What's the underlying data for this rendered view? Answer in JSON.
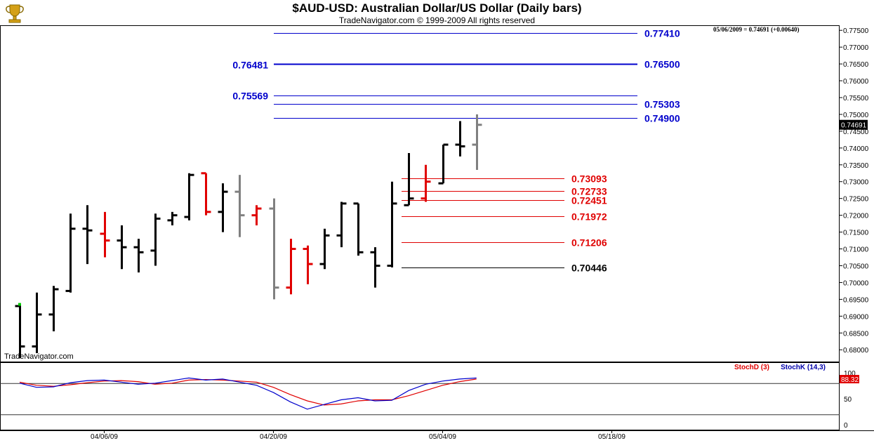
{
  "header": {
    "title": "$AUD-USD:  Australian Dollar/US Dollar  (Daily bars)",
    "copyright": "TradeNavigator.com © 1999-2009 All rights reserved",
    "quote": "05/06/2009 = 0.74691 (+0.00640)",
    "watermark": "TradeNavigator.com"
  },
  "colors": {
    "up_bar": "#000000",
    "down_bar": "#e00000",
    "last_bars": "#808080",
    "fib_blue": "#0000cc",
    "fib_red": "#e00000",
    "stoch_d": "#e00000",
    "stoch_k": "#0000aa",
    "current_price_bg": "#000000"
  },
  "chart_data": [
    {
      "type": "ohlc",
      "title": "$AUD-USD:  Australian Dollar/US Dollar  (Daily bars)",
      "ylim": [
        0.6765,
        0.7765
      ],
      "y_ticks": [
        "0.68000",
        "0.68500",
        "0.69000",
        "0.69500",
        "0.70000",
        "0.70500",
        "0.71000",
        "0.71500",
        "0.72000",
        "0.72500",
        "0.73000",
        "0.73500",
        "0.74000",
        "0.74500",
        "0.75000",
        "0.75500",
        "0.76000",
        "0.76500",
        "0.77000",
        "0.77500"
      ],
      "x_ticks": [
        {
          "label": "04/06/09",
          "index": 5
        },
        {
          "label": "04/20/09",
          "index": 15
        },
        {
          "label": "05/04/09",
          "index": 25
        },
        {
          "label": "05/18/09",
          "index": 35
        }
      ],
      "bars": [
        {
          "o": 0.693,
          "h": 0.6935,
          "l": 0.6775,
          "c": 0.681,
          "color": "black"
        },
        {
          "o": 0.681,
          "h": 0.697,
          "l": 0.679,
          "c": 0.6905,
          "color": "black"
        },
        {
          "o": 0.6905,
          "h": 0.699,
          "l": 0.6855,
          "c": 0.698,
          "color": "black"
        },
        {
          "o": 0.6975,
          "h": 0.7205,
          "l": 0.697,
          "c": 0.716,
          "color": "black"
        },
        {
          "o": 0.716,
          "h": 0.723,
          "l": 0.7055,
          "c": 0.7155,
          "color": "black"
        },
        {
          "o": 0.7145,
          "h": 0.721,
          "l": 0.7075,
          "c": 0.7125,
          "color": "red"
        },
        {
          "o": 0.7125,
          "h": 0.717,
          "l": 0.704,
          "c": 0.7105,
          "color": "black"
        },
        {
          "o": 0.7105,
          "h": 0.713,
          "l": 0.703,
          "c": 0.709,
          "color": "black"
        },
        {
          "o": 0.7095,
          "h": 0.7205,
          "l": 0.705,
          "c": 0.719,
          "color": "black"
        },
        {
          "o": 0.7185,
          "h": 0.721,
          "l": 0.717,
          "c": 0.72,
          "color": "black"
        },
        {
          "o": 0.7195,
          "h": 0.7325,
          "l": 0.7185,
          "c": 0.732,
          "color": "black"
        },
        {
          "o": 0.7325,
          "h": 0.7325,
          "l": 0.72,
          "c": 0.721,
          "color": "red"
        },
        {
          "o": 0.721,
          "h": 0.7295,
          "l": 0.715,
          "c": 0.727,
          "color": "black"
        },
        {
          "o": 0.727,
          "h": 0.732,
          "l": 0.7135,
          "c": 0.72,
          "color": "gray"
        },
        {
          "o": 0.72,
          "h": 0.723,
          "l": 0.717,
          "c": 0.722,
          "color": "red"
        },
        {
          "o": 0.722,
          "h": 0.725,
          "l": 0.695,
          "c": 0.6985,
          "color": "gray"
        },
        {
          "o": 0.6985,
          "h": 0.713,
          "l": 0.6965,
          "c": 0.71,
          "color": "red"
        },
        {
          "o": 0.71,
          "h": 0.711,
          "l": 0.6995,
          "c": 0.7055,
          "color": "red"
        },
        {
          "o": 0.7055,
          "h": 0.716,
          "l": 0.704,
          "c": 0.714,
          "color": "black"
        },
        {
          "o": 0.714,
          "h": 0.724,
          "l": 0.7105,
          "c": 0.7235,
          "color": "black"
        },
        {
          "o": 0.7235,
          "h": 0.7235,
          "l": 0.708,
          "c": 0.709,
          "color": "black"
        },
        {
          "o": 0.709,
          "h": 0.7105,
          "l": 0.6985,
          "c": 0.705,
          "color": "black"
        },
        {
          "o": 0.705,
          "h": 0.73,
          "l": 0.7045,
          "c": 0.7235,
          "color": "black"
        },
        {
          "o": 0.723,
          "h": 0.7385,
          "l": 0.723,
          "c": 0.725,
          "color": "black"
        },
        {
          "o": 0.725,
          "h": 0.735,
          "l": 0.724,
          "c": 0.73,
          "color": "red"
        },
        {
          "o": 0.7295,
          "h": 0.741,
          "l": 0.7295,
          "c": 0.741,
          "color": "black"
        },
        {
          "o": 0.741,
          "h": 0.748,
          "l": 0.7375,
          "c": 0.7405,
          "color": "black"
        },
        {
          "o": 0.741,
          "h": 0.75,
          "l": 0.7335,
          "c": 0.7469,
          "color": "gray"
        }
      ],
      "current_price": "0.74691",
      "current_value": 0.74691,
      "levels": [
        {
          "value": 0.7741,
          "label": "0.77410",
          "color": "blue",
          "weight": 1,
          "x_from": 16,
          "x_to": 36.5,
          "label_right": true
        },
        {
          "value": 0.765,
          "label": "0.76500",
          "color": "blue",
          "weight": 2,
          "x_from": 16,
          "x_to": 36.5,
          "label_right": true
        },
        {
          "value": 0.76481,
          "label": "0.76481",
          "color": "blue",
          "weight": 0,
          "x_from": 16,
          "x_to": 16,
          "label_left": true
        },
        {
          "value": 0.75569,
          "label": "0.75569",
          "color": "blue",
          "weight": 1,
          "x_from": 16,
          "x_to": 36.5,
          "label_left": true
        },
        {
          "value": 0.75303,
          "label": "0.75303",
          "color": "blue",
          "weight": 1,
          "x_from": 16,
          "x_to": 36.5,
          "label_right": true
        },
        {
          "value": 0.749,
          "label": "0.74900",
          "color": "blue",
          "weight": 1,
          "x_from": 16,
          "x_to": 36.5,
          "label_right": true
        },
        {
          "value": 0.73093,
          "label": "0.73093",
          "color": "red",
          "weight": 1,
          "x_from": 22.5,
          "x_to": 32.5,
          "label_right": true
        },
        {
          "value": 0.72733,
          "label": "0.72733",
          "color": "red",
          "weight": 1,
          "x_from": 22.5,
          "x_to": 32.5,
          "label_right": true
        },
        {
          "value": 0.72451,
          "label": "0.72451",
          "color": "red",
          "weight": 1,
          "x_from": 22.5,
          "x_to": 32.5,
          "label_right": true
        },
        {
          "value": 0.71972,
          "label": "0.71972",
          "color": "red",
          "weight": 1,
          "x_from": 22.5,
          "x_to": 32.5,
          "label_right": true
        },
        {
          "value": 0.71206,
          "label": "0.71206",
          "color": "red",
          "weight": 1,
          "x_from": 22.5,
          "x_to": 32.5,
          "label_right": true
        },
        {
          "value": 0.70446,
          "label": "0.70446",
          "color": "black",
          "weight": 1,
          "x_from": 22.5,
          "x_to": 32.5,
          "label_right": true
        }
      ]
    },
    {
      "type": "line",
      "ylim": [
        0,
        100
      ],
      "y_ticks": [
        "0",
        "50",
        "100"
      ],
      "reference_lines": [
        20,
        80
      ],
      "series": [
        {
          "name": "StochD (3)",
          "color": "red",
          "values": [
            82,
            76,
            74,
            77,
            81,
            84,
            85,
            83,
            78,
            80,
            86,
            87,
            86,
            84,
            82,
            72,
            58,
            46,
            38,
            40,
            46,
            48,
            48,
            56,
            66,
            76,
            83,
            88
          ]
        },
        {
          "name": "StochK (14,3)",
          "color": "blue",
          "values": [
            80,
            72,
            73,
            81,
            85,
            86,
            82,
            78,
            80,
            85,
            90,
            86,
            88,
            82,
            76,
            62,
            44,
            30,
            39,
            48,
            52,
            46,
            47,
            66,
            78,
            84,
            88,
            90
          ]
        }
      ],
      "current_value": "88.32"
    }
  ]
}
